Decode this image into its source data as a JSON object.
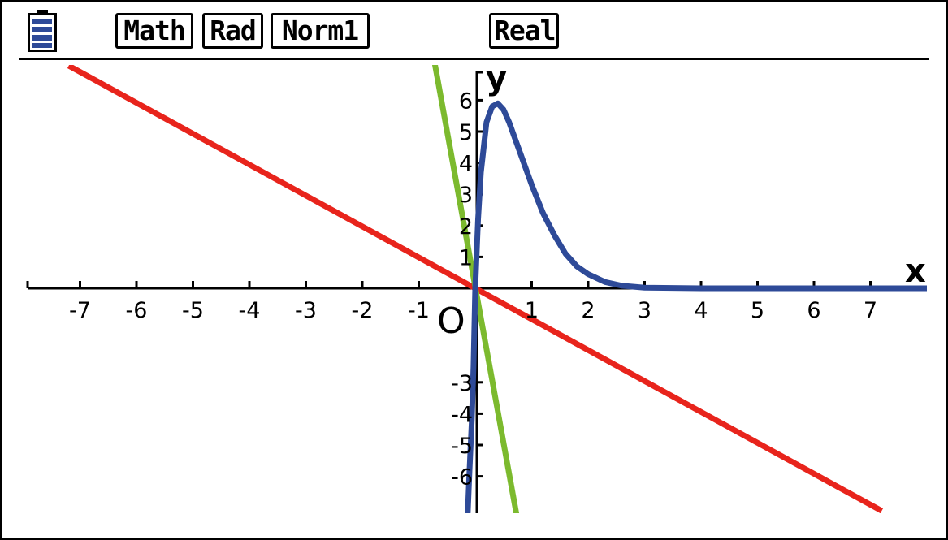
{
  "status_bar": {
    "battery_icon": "battery-icon",
    "modes": {
      "input": "Math",
      "angle": "Rad",
      "display": "Norm1",
      "complex": "Real"
    }
  },
  "chart_data": {
    "type": "line",
    "xlabel": "x",
    "ylabel": "y",
    "origin_label": "O",
    "xlim": [
      -8,
      8
    ],
    "ylim": [
      -7.5,
      7
    ],
    "x_ticks": [
      -7,
      -6,
      -5,
      -4,
      -3,
      -2,
      -1,
      1,
      2,
      3,
      4,
      5,
      6,
      7
    ],
    "x_tick_labels": [
      "-7",
      "-6",
      "-5",
      "-4",
      "-3",
      "-2",
      "-1",
      "1",
      "2",
      "3",
      "4",
      "5",
      "6",
      "7"
    ],
    "y_ticks": [
      -6,
      -5,
      -4,
      -3,
      1,
      2,
      3,
      4,
      5,
      6
    ],
    "y_tick_labels": [
      "-6",
      "-5",
      "-4",
      "-3",
      "1",
      "2",
      "3",
      "4",
      "5",
      "6"
    ],
    "grid": false,
    "series": [
      {
        "color": "#e8241c",
        "x": [
          -7.2,
          7.2
        ],
        "y": [
          7.1,
          -7.1
        ]
      },
      {
        "color": "#7cba2e",
        "x": [
          -0.72,
          0.76
        ],
        "y": [
          7.2,
          -7.5
        ]
      },
      {
        "color": "#2e4a98",
        "x": [
          -0.14,
          -0.1,
          -0.06,
          -0.03,
          0.0,
          0.05,
          0.1,
          0.2,
          0.3,
          0.4,
          0.5,
          0.6,
          0.7,
          0.8,
          1.0,
          1.2,
          1.4,
          1.6,
          1.8,
          2.0,
          2.3,
          2.6,
          3.0,
          4.0,
          6.0,
          8.0
        ],
        "y": [
          -7.5,
          -5.8,
          -4.2,
          -2.5,
          0.0,
          2.2,
          3.7,
          5.3,
          5.8,
          5.9,
          5.7,
          5.3,
          4.8,
          4.3,
          3.3,
          2.4,
          1.7,
          1.1,
          0.7,
          0.45,
          0.2,
          0.08,
          0.02,
          0.0,
          0.0,
          0.0
        ]
      }
    ]
  }
}
